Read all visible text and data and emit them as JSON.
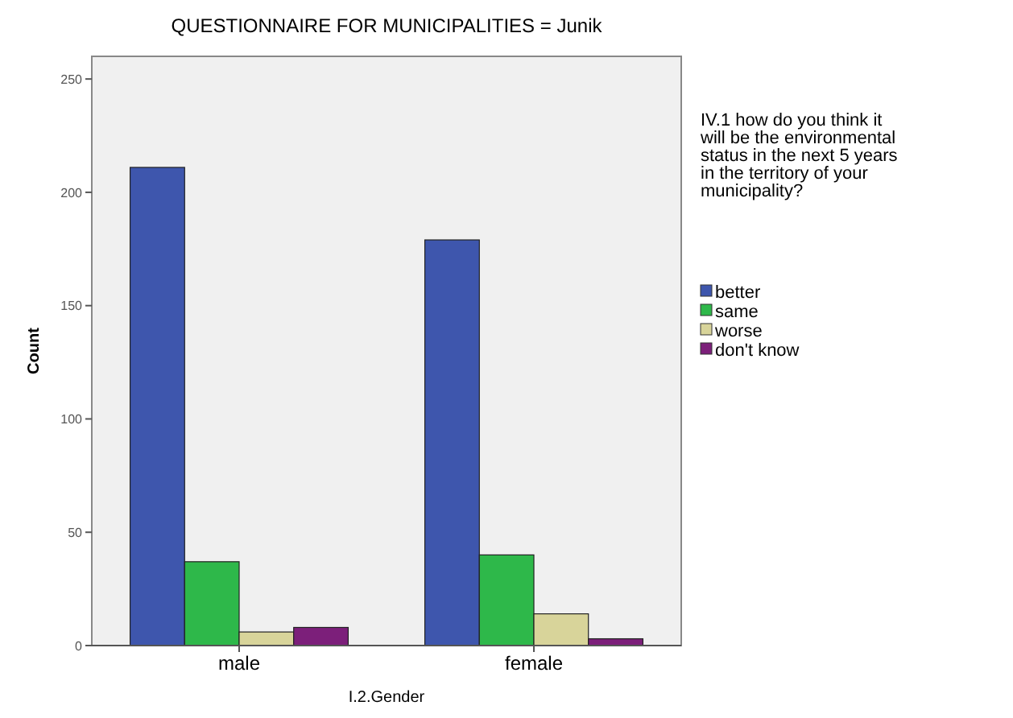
{
  "chart_data": {
    "type": "bar",
    "title": "QUESTIONNAIRE FOR MUNICIPALITIES = Junik",
    "xlabel": "I.2.Gender",
    "ylabel": "Count",
    "legend_title": "IV.1 how do you think it will be the environmental status in the next 5 years in the territory of your municipality?",
    "categories": [
      "male",
      "female"
    ],
    "series": [
      {
        "name": "better",
        "color": "#3e56ad",
        "values": [
          211,
          179
        ]
      },
      {
        "name": "same",
        "color": "#2eb84a",
        "values": [
          37,
          40
        ]
      },
      {
        "name": "worse",
        "color": "#d8d49a",
        "values": [
          6,
          14
        ]
      },
      {
        "name": "don't know",
        "color": "#7c1f7a",
        "values": [
          8,
          3
        ]
      }
    ],
    "ylim": [
      0,
      260
    ],
    "yticks": [
      0,
      50,
      100,
      150,
      200,
      250
    ],
    "grid": false,
    "legend": "right"
  }
}
